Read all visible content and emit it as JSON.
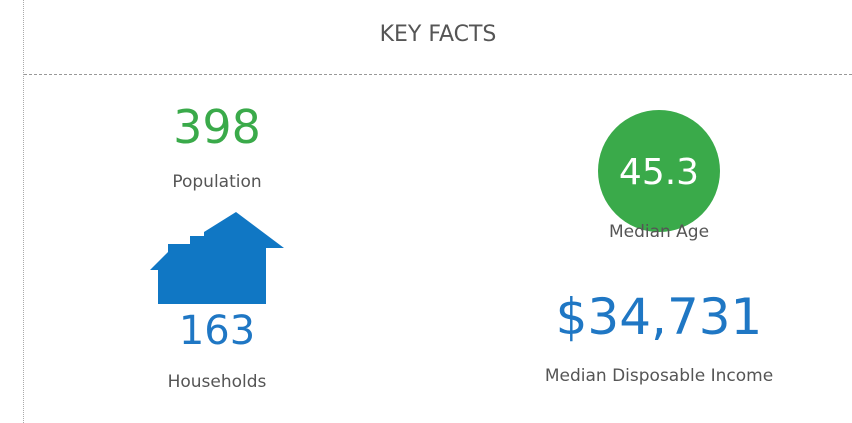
{
  "header": {
    "title": "KEY FACTS"
  },
  "facts": [
    {
      "value": "398",
      "label": "Population"
    },
    {
      "value": "45.3",
      "label": "Median Age"
    },
    {
      "value": "163",
      "label": "Households"
    },
    {
      "value": "$34,731",
      "label": "Median Disposable Income"
    }
  ]
}
